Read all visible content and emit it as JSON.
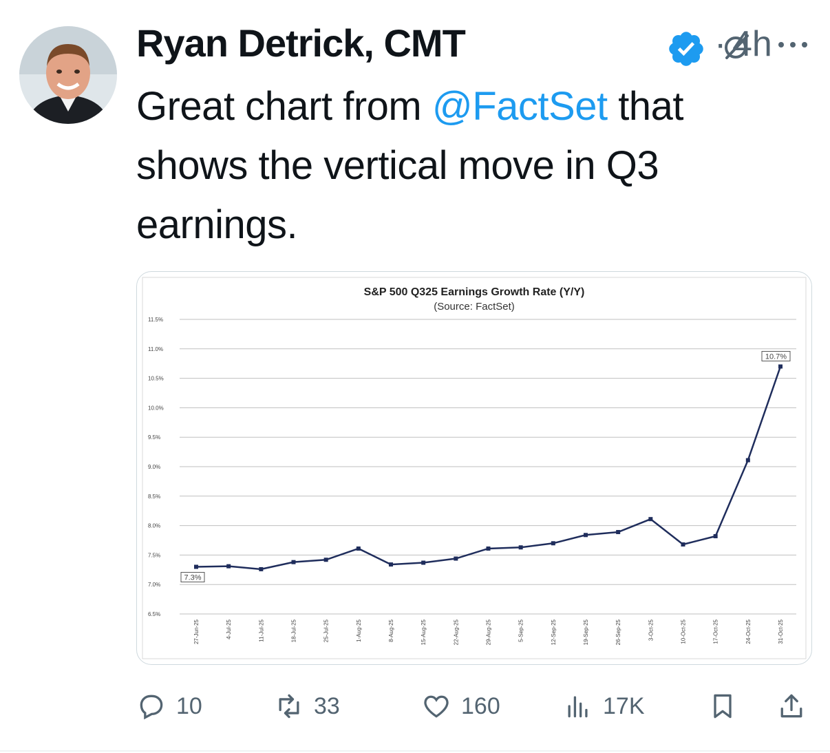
{
  "tweet": {
    "author": "Ryan Detrick, CMT",
    "separator": "·",
    "time": "4h",
    "text_before": "Great chart from ",
    "mention": "@FactSet",
    "text_after": " that shows the vertical move in Q3 earnings."
  },
  "actions": {
    "replies": "10",
    "reposts": "33",
    "likes": "160",
    "views": "17K"
  },
  "colors": {
    "accent": "#1d9bf0",
    "muted": "#536471",
    "series": "#1f2d5c"
  },
  "chart_data": {
    "type": "line",
    "title": "S&P 500 Q325 Earnings Growth Rate (Y/Y)",
    "subtitle": "(Source: FactSet)",
    "ylim": [
      6.5,
      11.5
    ],
    "yticks": [
      "11.5%",
      "11.0%",
      "10.5%",
      "10.0%",
      "9.5%",
      "9.0%",
      "8.5%",
      "8.0%",
      "7.5%",
      "7.0%",
      "6.5%"
    ],
    "grid": true,
    "categories": [
      "27-Jun-25",
      "4-Jul-25",
      "11-Jul-25",
      "18-Jul-25",
      "25-Jul-25",
      "1-Aug-25",
      "8-Aug-25",
      "15-Aug-25",
      "22-Aug-25",
      "29-Aug-25",
      "5-Sep-25",
      "12-Sep-25",
      "19-Sep-25",
      "26-Sep-25",
      "3-Oct-25",
      "10-Oct-25",
      "17-Oct-25",
      "24-Oct-25",
      "31-Oct-25"
    ],
    "values": [
      7.3,
      7.31,
      7.26,
      7.38,
      7.42,
      7.61,
      7.34,
      7.37,
      7.44,
      7.61,
      7.63,
      7.7,
      7.84,
      7.89,
      8.11,
      7.68,
      7.82,
      9.11,
      10.7
    ],
    "annotations": [
      {
        "index": 0,
        "text": "7.3%"
      },
      {
        "index": 18,
        "text": "10.7%"
      }
    ]
  }
}
